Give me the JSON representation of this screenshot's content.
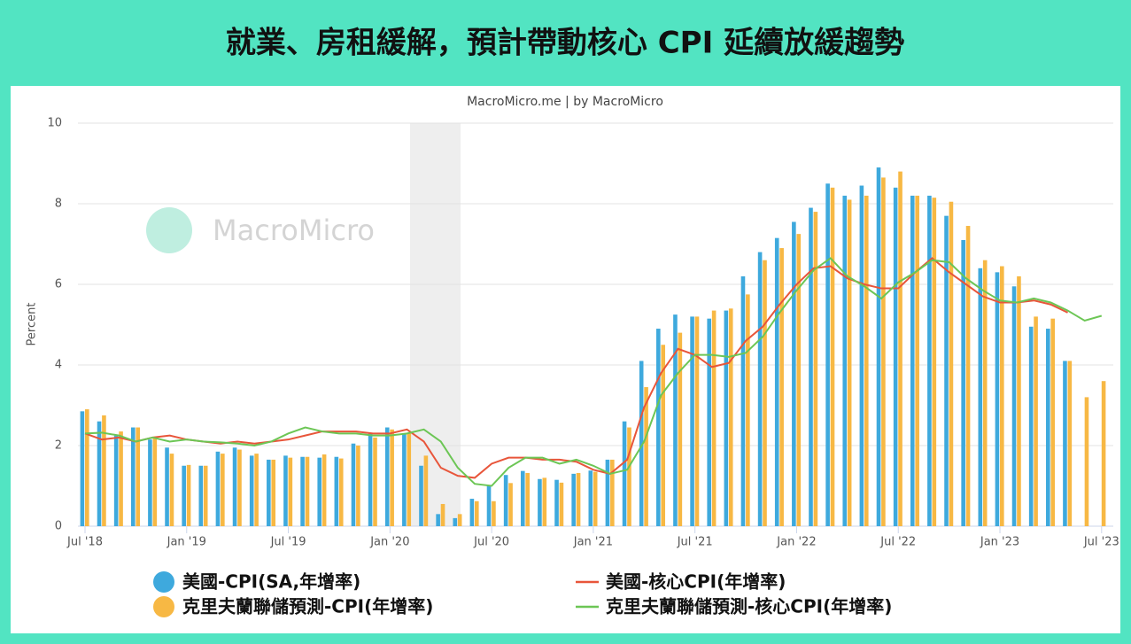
{
  "chart_data": {
    "type": "bar-line",
    "title": "就業、房租緩解，預計帶動核心 CPI 延續放緩趨勢",
    "subtitle": "MacroMicro.me | by MacroMicro",
    "watermark": "MacroMicro",
    "ylabel": "Percent",
    "ylim": [
      0,
      10
    ],
    "yticks": [
      0,
      2,
      4,
      6,
      8,
      10
    ],
    "grid": true,
    "categories": [
      "Jul '18",
      null,
      null,
      null,
      null,
      null,
      "Jan '19",
      null,
      null,
      null,
      null,
      null,
      "Jul '19",
      null,
      null,
      null,
      null,
      null,
      "Jan '20",
      null,
      null,
      null,
      null,
      null,
      "Jul '20",
      null,
      null,
      null,
      null,
      null,
      "Jan '21",
      null,
      null,
      null,
      null,
      null,
      "Jul '21",
      null,
      null,
      null,
      null,
      null,
      "Jan '22",
      null,
      null,
      null,
      null,
      null,
      "Jul '22",
      null,
      null,
      null,
      null,
      null,
      "Jan '23",
      null,
      null,
      null,
      null,
      null,
      "Jul '23"
    ],
    "series": [
      {
        "name": "美國-CPI(SA,年增率)",
        "kind": "bar",
        "color": "#3ea9dd",
        "values": [
          2.85,
          2.6,
          2.25,
          2.45,
          2.15,
          1.95,
          1.5,
          1.5,
          1.85,
          1.95,
          1.75,
          1.65,
          1.75,
          1.72,
          1.7,
          1.72,
          2.05,
          2.3,
          2.45,
          2.3,
          1.5,
          0.3,
          0.2,
          0.68,
          1.0,
          1.27,
          1.37,
          1.17,
          1.15,
          1.3,
          1.38,
          1.65,
          2.6,
          4.1,
          4.9,
          5.25,
          5.2,
          5.15,
          5.35,
          6.2,
          6.8,
          7.15,
          7.55,
          7.9,
          8.5,
          8.2,
          8.45,
          8.9,
          8.4,
          8.2,
          8.2,
          7.7,
          7.1,
          6.4,
          6.3,
          5.95,
          4.95,
          4.9,
          4.1,
          null,
          null
        ]
      },
      {
        "name": "克里夫蘭聯儲預測-CPI(年增率)",
        "kind": "bar",
        "color": "#f7b844",
        "values": [
          2.9,
          2.75,
          2.35,
          2.45,
          2.2,
          1.8,
          1.52,
          1.5,
          1.8,
          1.9,
          1.8,
          1.65,
          1.7,
          1.72,
          1.78,
          1.68,
          2.0,
          2.2,
          2.4,
          2.3,
          1.75,
          0.55,
          0.3,
          0.62,
          0.62,
          1.07,
          1.32,
          1.2,
          1.08,
          1.32,
          1.35,
          1.65,
          2.45,
          3.45,
          4.5,
          4.8,
          5.2,
          5.35,
          5.4,
          5.75,
          6.6,
          6.9,
          7.25,
          7.8,
          8.4,
          8.1,
          8.2,
          8.65,
          8.8,
          8.2,
          8.15,
          8.05,
          7.45,
          6.6,
          6.45,
          6.2,
          5.2,
          5.15,
          4.1,
          3.2,
          3.6
        ]
      },
      {
        "name": "美國-核心CPI(年增率)",
        "kind": "line",
        "color": "#e8553a",
        "values": [
          2.3,
          2.15,
          2.2,
          2.1,
          2.2,
          2.25,
          2.15,
          2.1,
          2.05,
          2.1,
          2.05,
          2.1,
          2.15,
          2.25,
          2.35,
          2.35,
          2.35,
          2.3,
          2.3,
          2.4,
          2.1,
          1.45,
          1.25,
          1.2,
          1.55,
          1.7,
          1.7,
          1.65,
          1.65,
          1.6,
          1.4,
          1.3,
          1.65,
          2.95,
          3.8,
          4.4,
          4.25,
          3.95,
          4.05,
          4.6,
          4.95,
          5.5,
          6.0,
          6.4,
          6.45,
          6.15,
          6.0,
          5.9,
          5.9,
          6.3,
          6.65,
          6.3,
          6.0,
          5.7,
          5.55,
          5.55,
          5.6,
          5.5,
          5.3,
          null,
          null
        ]
      },
      {
        "name": "克里夫蘭聯儲預測-核心CPI(年增率)",
        "kind": "line",
        "color": "#6cc655",
        "values": [
          2.3,
          2.32,
          2.25,
          2.1,
          2.2,
          2.1,
          2.15,
          2.1,
          2.08,
          2.05,
          2.0,
          2.1,
          2.3,
          2.45,
          2.35,
          2.3,
          2.3,
          2.25,
          2.25,
          2.3,
          2.4,
          2.1,
          1.45,
          1.05,
          1.0,
          1.45,
          1.7,
          1.7,
          1.55,
          1.65,
          1.5,
          1.3,
          1.4,
          2.1,
          3.25,
          3.8,
          4.25,
          4.25,
          4.2,
          4.3,
          4.7,
          5.3,
          5.85,
          6.35,
          6.65,
          6.2,
          5.95,
          5.65,
          6.05,
          6.3,
          6.6,
          6.55,
          6.15,
          5.85,
          5.6,
          5.55,
          5.65,
          5.55,
          5.35,
          5.1,
          5.22
        ]
      }
    ]
  }
}
